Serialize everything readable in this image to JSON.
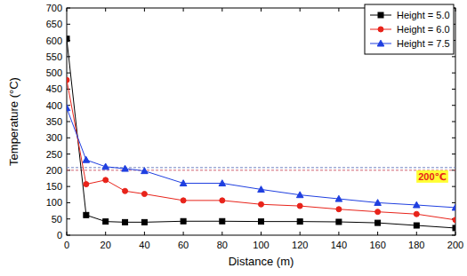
{
  "chart_data": {
    "type": "line",
    "x_label": "Distance (m)",
    "y_label": "Temperature (°C)",
    "x": [
      0,
      10,
      20,
      30,
      40,
      60,
      80,
      100,
      120,
      140,
      160,
      180,
      200
    ],
    "series": [
      {
        "name": "Height = 5.0",
        "color": "#000000",
        "marker": "square",
        "line_style": "solid",
        "values": [
          605,
          62,
          42,
          40,
          40,
          43,
          43,
          42,
          42,
          41,
          38,
          30,
          22
        ]
      },
      {
        "name": "Height = 6.0",
        "color": "#e8231a",
        "marker": "circle",
        "line_style": "solid",
        "values": [
          478,
          157,
          170,
          136,
          127,
          107,
          107,
          95,
          90,
          80,
          72,
          65,
          47
        ]
      },
      {
        "name": "Height = 7.5",
        "color": "#1f3fe0",
        "marker": "triangle",
        "line_style": "solid",
        "values": [
          392,
          232,
          211,
          205,
          198,
          160,
          160,
          141,
          124,
          112,
          100,
          93,
          85
        ]
      }
    ],
    "xlim": [
      0,
      200
    ],
    "xticks": [
      0,
      20,
      40,
      60,
      80,
      100,
      120,
      140,
      160,
      180,
      200
    ],
    "ylim": [
      0,
      700
    ],
    "yticks": [
      0,
      50,
      100,
      150,
      200,
      250,
      300,
      350,
      400,
      450,
      500,
      550,
      600,
      650,
      700
    ],
    "annotations": [
      {
        "text": "200℃",
        "y": 200
      }
    ],
    "legend": "upper right",
    "grid": false
  }
}
